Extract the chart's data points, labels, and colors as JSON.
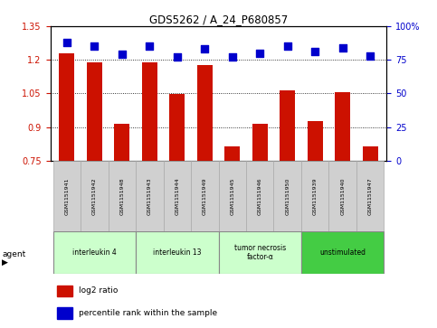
{
  "title": "GDS5262 / A_24_P680857",
  "samples": [
    "GSM1151941",
    "GSM1151942",
    "GSM1151948",
    "GSM1151943",
    "GSM1151944",
    "GSM1151949",
    "GSM1151945",
    "GSM1151946",
    "GSM1151950",
    "GSM1151939",
    "GSM1151940",
    "GSM1151947"
  ],
  "log2_ratio": [
    1.23,
    1.19,
    0.915,
    1.19,
    1.046,
    1.175,
    0.815,
    0.915,
    1.063,
    0.927,
    1.055,
    0.815
  ],
  "percentile": [
    88,
    85,
    79,
    85,
    77,
    83,
    77,
    80,
    85,
    81,
    84,
    78
  ],
  "ylim_left": [
    0.75,
    1.35
  ],
  "ylim_right": [
    0,
    100
  ],
  "yticks_left": [
    0.75,
    0.9,
    1.05,
    1.2,
    1.35
  ],
  "yticks_right": [
    0,
    25,
    50,
    75,
    100
  ],
  "bar_color": "#cc1100",
  "dot_color": "#0000cc",
  "grid_color": "#000000",
  "sample_box_color": "#d0d0d0",
  "agents": [
    {
      "label": "interleukin 4",
      "indices": [
        0,
        1,
        2
      ],
      "color": "#ccffcc"
    },
    {
      "label": "interleukin 13",
      "indices": [
        3,
        4,
        5
      ],
      "color": "#ccffcc"
    },
    {
      "label": "tumor necrosis\nfactor-α",
      "indices": [
        6,
        7,
        8
      ],
      "color": "#ccffcc"
    },
    {
      "label": "unstimulated",
      "indices": [
        9,
        10,
        11
      ],
      "color": "#44cc44"
    }
  ],
  "legend_items": [
    {
      "label": "log2 ratio",
      "color": "#cc1100"
    },
    {
      "label": "percentile rank within the sample",
      "color": "#0000cc"
    }
  ],
  "bar_width": 0.55,
  "dot_size": 28
}
